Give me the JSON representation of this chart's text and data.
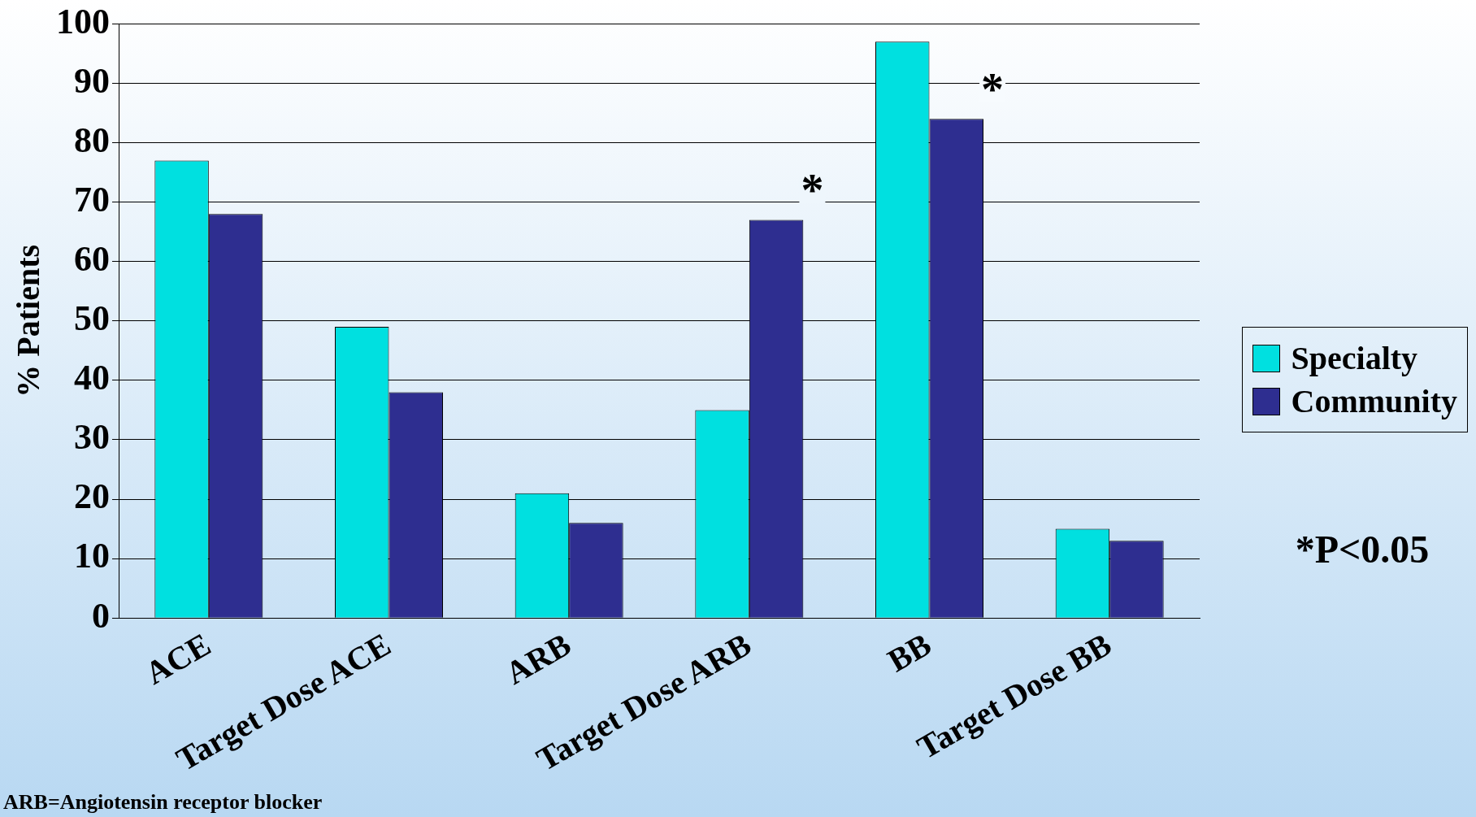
{
  "chart_data": {
    "type": "bar",
    "ylabel": "% Patients",
    "categories": [
      "ACE",
      "Target Dose ACE",
      "ARB",
      "Target Dose ARB",
      "BB",
      "Target Dose BB"
    ],
    "series": [
      {
        "name": "Specialty",
        "color": "#00e0e0",
        "values": [
          77,
          49,
          21,
          35,
          97,
          15
        ]
      },
      {
        "name": "Community",
        "color": "#2e2e90",
        "values": [
          68,
          38,
          16,
          67,
          84,
          13
        ]
      }
    ],
    "ylim": [
      0,
      100
    ],
    "yticks": [
      0,
      10,
      20,
      30,
      40,
      50,
      60,
      70,
      80,
      90,
      100
    ],
    "grid": "y",
    "legend": "right",
    "annotations": [
      {
        "text": "*",
        "x": "Target Dose ARB",
        "y": 67
      },
      {
        "text": "*",
        "x": "BB",
        "y": 84
      },
      "*P<0.05",
      "ARB=Angiotensin receptor blocker"
    ]
  }
}
